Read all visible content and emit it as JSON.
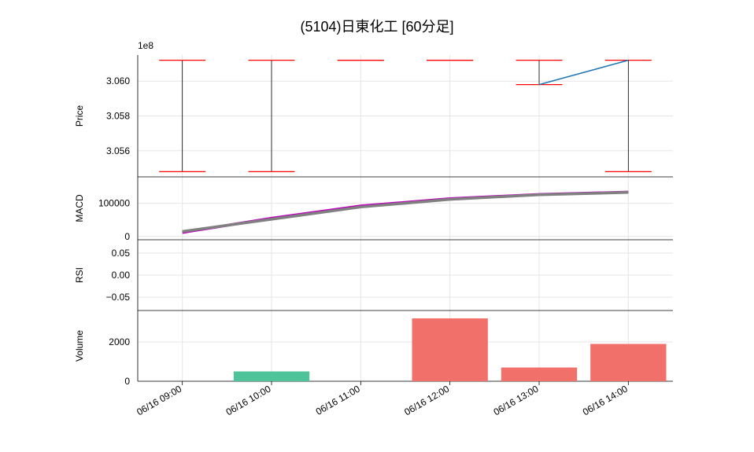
{
  "title": "(5104)日東化工  [60分足]",
  "exponent_label": "1e8",
  "background_color": "#ffffff",
  "grid_color": "#e5e5e5",
  "text_color": "#000000",
  "x": {
    "categories": [
      "06/16 09:00",
      "06/16 10:00",
      "06/16 11:00",
      "06/16 12:00",
      "06/16 13:00",
      "06/16 14:00"
    ],
    "rotation": 30
  },
  "panels": {
    "price": {
      "label": "Price",
      "ylim": [
        3.0545,
        3.0615
      ],
      "yticks": [
        3.056,
        3.058,
        3.06
      ],
      "yticklabels": [
        "3.056",
        "3.058",
        "3.060"
      ],
      "candles": {
        "high": [
          3.0612,
          3.0612,
          3.0612,
          3.0612,
          3.0612,
          3.0612
        ],
        "low": [
          3.0548,
          3.0548,
          3.0612,
          3.0612,
          3.0598,
          3.0548
        ],
        "cap_color": "#ff0000",
        "wick_color": "#000000",
        "cap_halfwidth": 0.26
      },
      "blue_line": {
        "xi": [
          4,
          5
        ],
        "y": [
          3.0598,
          3.0612
        ],
        "color": "#1f77b4"
      }
    },
    "macd": {
      "label": "MACD",
      "ylim": [
        -10000,
        180000
      ],
      "yticks": [
        0,
        100000
      ],
      "yticklabels": [
        "0",
        "100000"
      ],
      "lines": [
        {
          "color": "#bf00bf",
          "y": [
            12000,
            55000,
            92000,
            114000,
            127000,
            134000
          ]
        },
        {
          "color": "#808080",
          "y": [
            15000,
            52000,
            89000,
            112000,
            126000,
            133000
          ]
        }
      ]
    },
    "rsi": {
      "label": "RSI",
      "ylim": [
        -0.08,
        0.08
      ],
      "yticks": [
        -0.05,
        0.0,
        0.05
      ],
      "yticklabels": [
        "−0.05",
        "0.00",
        "0.05"
      ]
    },
    "volume": {
      "label": "Volume",
      "ylim": [
        0,
        3600
      ],
      "yticks": [
        0,
        2000
      ],
      "yticklabels": [
        "0",
        "2000"
      ],
      "bars": {
        "values": [
          0,
          500,
          0,
          3200,
          700,
          1900
        ],
        "colors": [
          "#4fc49a",
          "#4fc49a",
          "#f1706a",
          "#f1706a",
          "#f1706a",
          "#f1706a"
        ],
        "width": 0.85
      }
    }
  }
}
